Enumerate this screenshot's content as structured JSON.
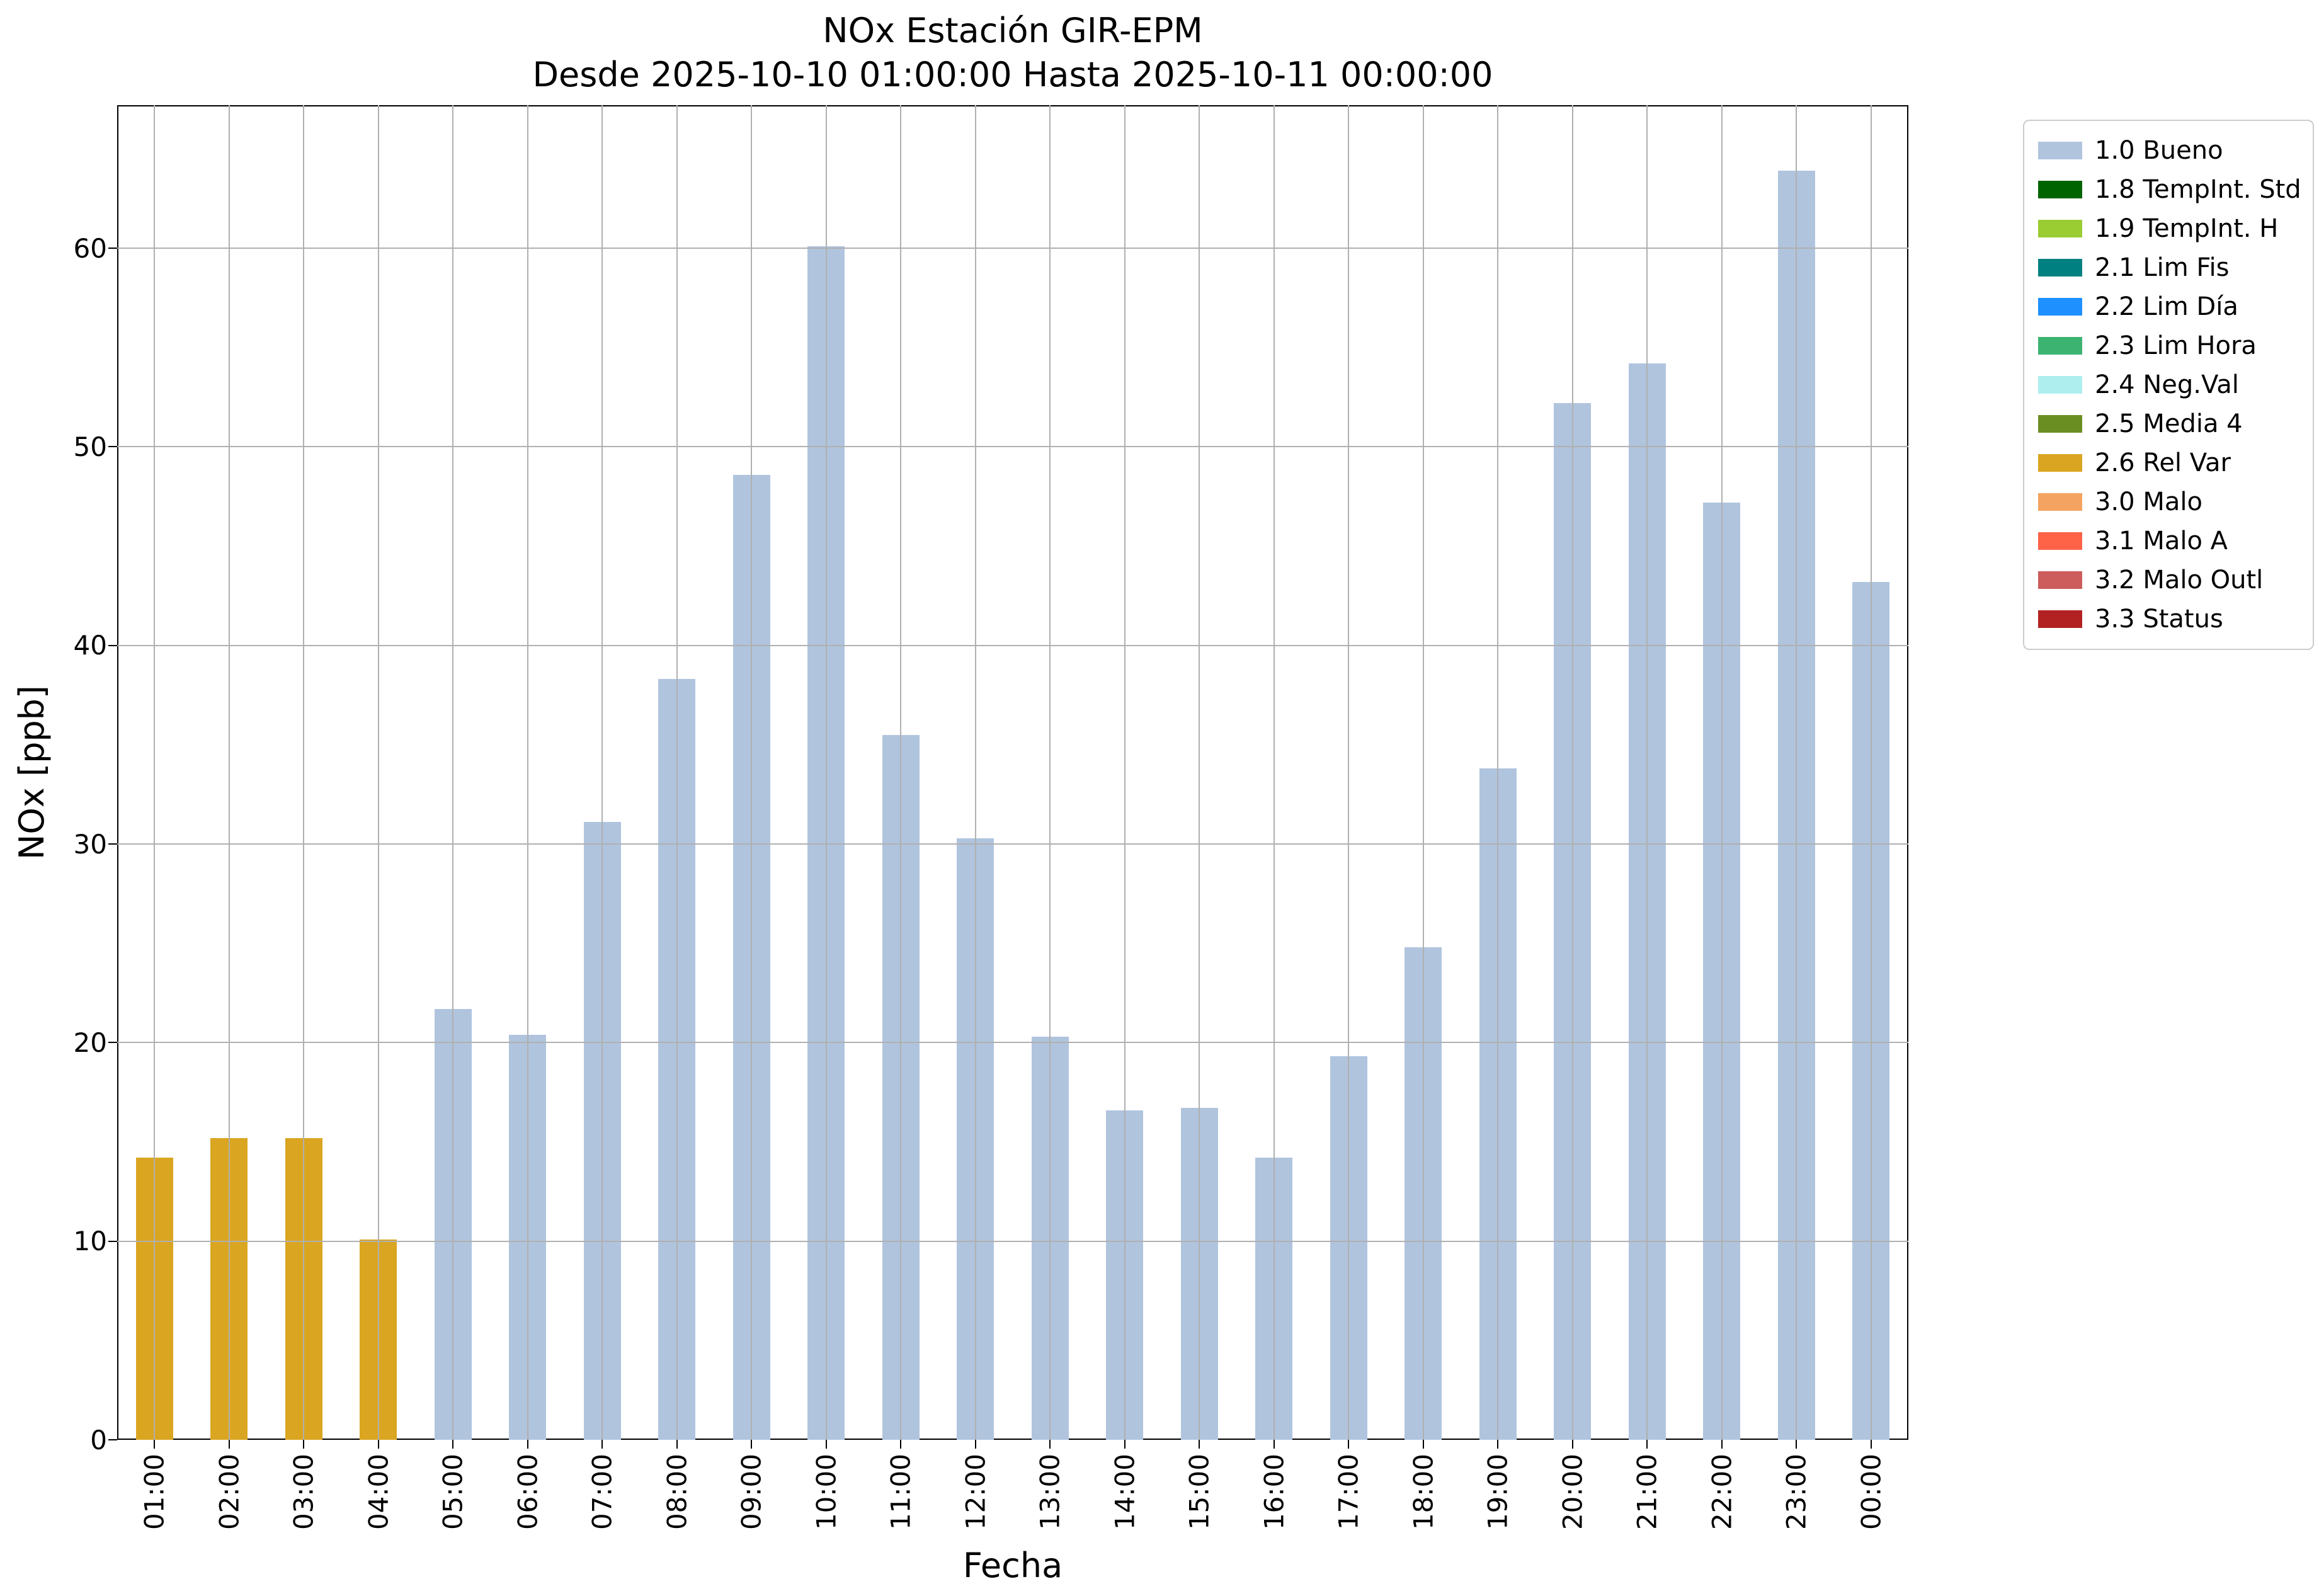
{
  "chart_data": {
    "type": "bar",
    "title": "NOx Estación GIR-EPM",
    "subtitle": "Desde 2025-10-10 01:00:00 Hasta 2025-10-11 00:00:00",
    "xlabel": "Fecha",
    "ylabel": "NOx [ppb]",
    "ylim": [
      0,
      67.2
    ],
    "yticks": [
      0,
      10,
      20,
      30,
      40,
      50,
      60
    ],
    "grid": true,
    "legend_position": "outside-right",
    "categories": [
      "01:00",
      "02:00",
      "03:00",
      "04:00",
      "05:00",
      "06:00",
      "07:00",
      "08:00",
      "09:00",
      "10:00",
      "11:00",
      "12:00",
      "13:00",
      "14:00",
      "15:00",
      "16:00",
      "17:00",
      "18:00",
      "19:00",
      "20:00",
      "21:00",
      "22:00",
      "23:00",
      "00:00"
    ],
    "values": [
      14.2,
      15.2,
      15.2,
      10.1,
      21.7,
      20.4,
      31.1,
      38.3,
      48.6,
      60.1,
      35.5,
      30.3,
      20.3,
      16.6,
      16.7,
      14.2,
      19.3,
      24.8,
      33.8,
      52.2,
      54.2,
      47.2,
      63.9,
      43.2
    ],
    "statuses": [
      "2.6 Rel Var",
      "2.6 Rel Var",
      "2.6 Rel Var",
      "2.6 Rel Var",
      "1.0 Bueno",
      "1.0 Bueno",
      "1.0 Bueno",
      "1.0 Bueno",
      "1.0 Bueno",
      "1.0 Bueno",
      "1.0 Bueno",
      "1.0 Bueno",
      "1.0 Bueno",
      "1.0 Bueno",
      "1.0 Bueno",
      "1.0 Bueno",
      "1.0 Bueno",
      "1.0 Bueno",
      "1.0 Bueno",
      "1.0 Bueno",
      "1.0 Bueno",
      "1.0 Bueno",
      "1.0 Bueno",
      "1.0 Bueno"
    ],
    "status_colors": {
      "1.0 Bueno": "#b0c4de",
      "2.6 Rel Var": "#daa520"
    },
    "legend": [
      {
        "label": "1.0 Bueno",
        "color": "#b0c4de"
      },
      {
        "label": "1.8 TempInt. Std",
        "color": "#006400"
      },
      {
        "label": "1.9 TempInt. H",
        "color": "#9acd32"
      },
      {
        "label": "2.1 Lim Fis",
        "color": "#008080"
      },
      {
        "label": "2.2 Lim Día",
        "color": "#1e90ff"
      },
      {
        "label": "2.3 Lim Hora",
        "color": "#3cb371"
      },
      {
        "label": "2.4 Neg.Val",
        "color": "#afeeee"
      },
      {
        "label": "2.5 Media 4",
        "color": "#6b8e23"
      },
      {
        "label": "2.6 Rel Var",
        "color": "#daa520"
      },
      {
        "label": "3.0 Malo",
        "color": "#f4a460"
      },
      {
        "label": "3.1 Malo A",
        "color": "#ff6347"
      },
      {
        "label": "3.2 Malo Outl",
        "color": "#cd5c5c"
      },
      {
        "label": "3.3 Status",
        "color": "#b22222"
      }
    ]
  }
}
